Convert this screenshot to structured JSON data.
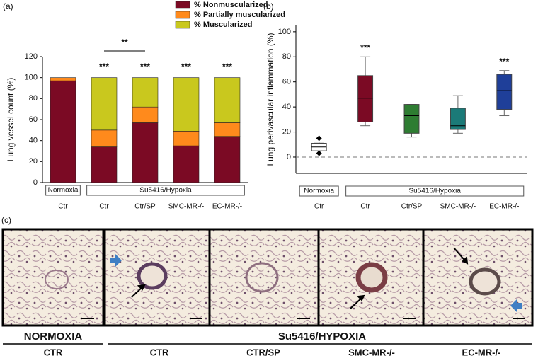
{
  "panel_labels": [
    "(a)",
    "(b)",
    "(c)"
  ],
  "chart_data": [
    {
      "type": "bar",
      "y_label": "Lung vessel count (%)",
      "categories": [
        "Ctr",
        "Ctr",
        "Ctr/SP",
        "SMC-MR-/-",
        "EC-MR-/-"
      ],
      "x_groups": [
        "Normoxia",
        "Su5416/Hypoxia"
      ],
      "series": [
        {
          "name": "% Nonmuscularized",
          "color": "#7b0a24",
          "values": [
            97,
            34,
            57,
            35,
            44
          ]
        },
        {
          "name": "% Partially muscularized",
          "color": "#ff8a1c",
          "values": [
            3,
            16,
            15,
            14,
            13
          ]
        },
        {
          "name": "% Muscularized",
          "color": "#c9c81e",
          "values": [
            0,
            50,
            28,
            51,
            43
          ]
        }
      ],
      "significance": [
        null,
        "***",
        "***",
        "***",
        "***"
      ],
      "bracket_label": "**",
      "ylim": [
        0,
        120
      ],
      "yticks": [
        0,
        20,
        40,
        60,
        80,
        100,
        120
      ]
    },
    {
      "type": "box",
      "y_label": "Lung perivascular inflammation (%)",
      "categories": [
        "Ctr",
        "Ctr",
        "Ctr/SP",
        "SMC-MR-/-",
        "EC-MR-/-"
      ],
      "x_groups": [
        "Normoxia",
        "Su5416/Hypoxia"
      ],
      "boxes": [
        {
          "min": 5,
          "q1": 5,
          "median": 8,
          "q3": 11,
          "max": 12,
          "color": "#ffffff",
          "outliers": [
            15,
            3
          ]
        },
        {
          "min": 25,
          "q1": 28,
          "median": 47,
          "q3": 65,
          "max": 80,
          "color": "#7b0a24"
        },
        {
          "min": 16,
          "q1": 19,
          "median": 33,
          "q3": 42,
          "max": 42,
          "color": "#2e7d32"
        },
        {
          "min": 19,
          "q1": 22,
          "median": 25,
          "q3": 39,
          "max": 49,
          "color": "#1b7a78"
        },
        {
          "min": 33,
          "q1": 38,
          "median": 53,
          "q3": 66,
          "max": 69,
          "color": "#1f3f99"
        }
      ],
      "significance": [
        null,
        "***",
        null,
        null,
        "***"
      ],
      "ylim": [
        -13,
        105
      ],
      "yticks": [
        0,
        20,
        40,
        60,
        80,
        100
      ]
    }
  ],
  "micrographs": {
    "group_labels": [
      "NORMOXIA",
      "Su5416/HYPOXIA"
    ],
    "labels": [
      "CTR",
      "CTR",
      "CTR/SP",
      "SMC-MR-/-",
      "EC-MR-/-"
    ]
  }
}
